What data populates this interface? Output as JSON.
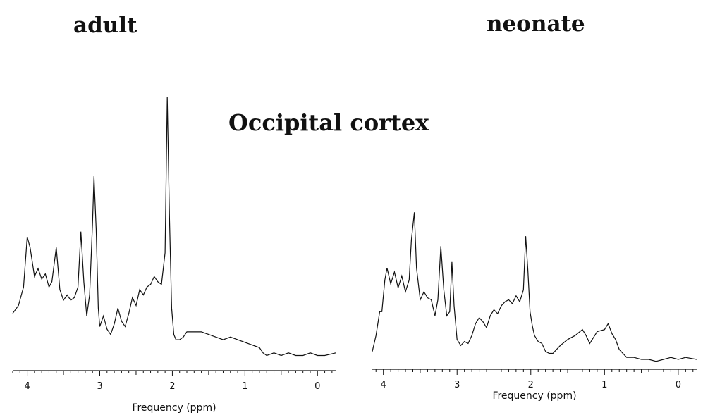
{
  "region_title": "Occipital cortex",
  "chart_data": [
    {
      "type": "line",
      "title": "adult",
      "xlabel": "Frequency (ppm)",
      "ylabel": "",
      "x_reversed": true,
      "xlim": [
        4.2,
        -0.25
      ],
      "ylim": [
        0,
        1
      ],
      "x_ticks": [
        4,
        3,
        2,
        1,
        0
      ],
      "tick_labels": [
        "4",
        "3",
        "2",
        "1",
        "0"
      ],
      "grid": false,
      "series": [
        {
          "name": "",
          "x": [
            4.2,
            4.12,
            4.05,
            4.0,
            3.96,
            3.9,
            3.85,
            3.8,
            3.75,
            3.7,
            3.66,
            3.6,
            3.55,
            3.5,
            3.45,
            3.4,
            3.35,
            3.3,
            3.26,
            3.22,
            3.18,
            3.14,
            3.1,
            3.08,
            3.05,
            3.02,
            3.0,
            2.95,
            2.9,
            2.85,
            2.8,
            2.75,
            2.7,
            2.65,
            2.6,
            2.55,
            2.5,
            2.45,
            2.4,
            2.35,
            2.3,
            2.25,
            2.2,
            2.15,
            2.1,
            2.07,
            2.04,
            2.01,
            1.98,
            1.95,
            1.9,
            1.85,
            1.8,
            1.7,
            1.6,
            1.5,
            1.4,
            1.3,
            1.2,
            1.1,
            1.0,
            0.9,
            0.8,
            0.75,
            0.7,
            0.6,
            0.5,
            0.4,
            0.3,
            0.2,
            0.1,
            0.0,
            -0.1,
            -0.25
          ],
          "y": [
            0.18,
            0.21,
            0.28,
            0.47,
            0.43,
            0.32,
            0.35,
            0.31,
            0.33,
            0.28,
            0.3,
            0.43,
            0.27,
            0.23,
            0.25,
            0.23,
            0.24,
            0.28,
            0.49,
            0.3,
            0.17,
            0.25,
            0.52,
            0.7,
            0.5,
            0.2,
            0.13,
            0.17,
            0.12,
            0.1,
            0.14,
            0.2,
            0.15,
            0.13,
            0.18,
            0.24,
            0.21,
            0.27,
            0.25,
            0.28,
            0.29,
            0.32,
            0.3,
            0.29,
            0.41,
            1.0,
            0.55,
            0.2,
            0.1,
            0.08,
            0.08,
            0.09,
            0.11,
            0.11,
            0.11,
            0.1,
            0.09,
            0.08,
            0.09,
            0.08,
            0.07,
            0.06,
            0.05,
            0.03,
            0.02,
            0.03,
            0.02,
            0.03,
            0.02,
            0.02,
            0.03,
            0.02,
            0.02,
            0.03
          ]
        }
      ]
    },
    {
      "type": "line",
      "title": "neonate",
      "xlabel": "Frequency (ppm)",
      "ylabel": "",
      "x_reversed": true,
      "xlim": [
        4.15,
        -0.25
      ],
      "ylim": [
        0,
        1
      ],
      "x_ticks": [
        4,
        3,
        2,
        1,
        0
      ],
      "tick_labels": [
        "4",
        "3",
        "2",
        "1",
        "0"
      ],
      "grid": false,
      "series": [
        {
          "name": "",
          "x": [
            4.15,
            4.1,
            4.05,
            4.02,
            3.98,
            3.95,
            3.9,
            3.85,
            3.8,
            3.75,
            3.7,
            3.65,
            3.62,
            3.58,
            3.55,
            3.5,
            3.45,
            3.4,
            3.35,
            3.3,
            3.26,
            3.22,
            3.18,
            3.14,
            3.1,
            3.07,
            3.04,
            3.0,
            2.95,
            2.9,
            2.85,
            2.8,
            2.75,
            2.7,
            2.65,
            2.6,
            2.55,
            2.5,
            2.45,
            2.4,
            2.35,
            2.3,
            2.25,
            2.2,
            2.15,
            2.1,
            2.07,
            2.04,
            2.01,
            1.98,
            1.95,
            1.9,
            1.85,
            1.8,
            1.75,
            1.7,
            1.6,
            1.5,
            1.4,
            1.3,
            1.25,
            1.2,
            1.1,
            1.0,
            0.95,
            0.9,
            0.85,
            0.8,
            0.7,
            0.6,
            0.5,
            0.4,
            0.3,
            0.2,
            0.1,
            0.0,
            -0.1,
            -0.25
          ],
          "y": [
            0.04,
            0.12,
            0.24,
            0.24,
            0.4,
            0.46,
            0.38,
            0.44,
            0.36,
            0.42,
            0.34,
            0.4,
            0.6,
            0.74,
            0.46,
            0.3,
            0.34,
            0.31,
            0.3,
            0.22,
            0.3,
            0.57,
            0.35,
            0.22,
            0.24,
            0.49,
            0.27,
            0.1,
            0.07,
            0.09,
            0.08,
            0.12,
            0.18,
            0.21,
            0.19,
            0.16,
            0.22,
            0.25,
            0.23,
            0.27,
            0.29,
            0.3,
            0.28,
            0.32,
            0.29,
            0.35,
            0.62,
            0.45,
            0.24,
            0.17,
            0.12,
            0.09,
            0.08,
            0.04,
            0.03,
            0.03,
            0.07,
            0.1,
            0.12,
            0.15,
            0.12,
            0.08,
            0.14,
            0.15,
            0.18,
            0.13,
            0.1,
            0.05,
            0.01,
            0.01,
            0.0,
            0.0,
            -0.01,
            0.0,
            0.01,
            0.0,
            0.01,
            0.0
          ]
        }
      ]
    }
  ]
}
